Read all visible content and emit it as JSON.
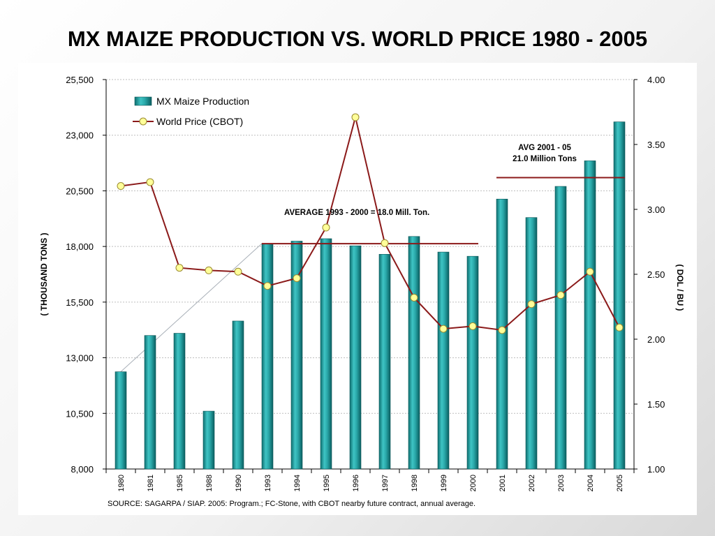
{
  "title": "MX MAIZE PRODUCTION VS. WORLD PRICE 1980 - 2005",
  "source": "SOURCE:  SAGARPA /   SIAP.   2005:  Program.; FC-Stone, with CBOT nearby future contract, annual average.",
  "chart_data": {
    "type": "bar",
    "categories": [
      "1980",
      "1981",
      "1985",
      "1988",
      "1990",
      "1993",
      "1994",
      "1995",
      "1996",
      "1997",
      "1998",
      "1999",
      "2000",
      "2001",
      "2002",
      "2003",
      "2004",
      "2005"
    ],
    "series": [
      {
        "name": "MX Maize Production",
        "type": "bar",
        "axis": "left",
        "color": "#1f9a9a",
        "values": [
          12370,
          14000,
          14100,
          10600,
          14650,
          18130,
          18240,
          18350,
          18030,
          17650,
          18450,
          17750,
          17560,
          20130,
          19300,
          20700,
          21850,
          23600
        ]
      },
      {
        "name": "World Price (CBOT)",
        "type": "line",
        "axis": "right",
        "color": "#8b1a1a",
        "marker_color": "#ffff99",
        "values": [
          3.18,
          3.21,
          2.55,
          2.53,
          2.52,
          2.41,
          2.47,
          2.86,
          3.71,
          2.74,
          2.32,
          2.08,
          2.1,
          2.07,
          2.27,
          2.34,
          2.52,
          2.09
        ]
      }
    ],
    "y_left": {
      "label": "( THOUSAND TONS )",
      "range": [
        8000,
        25500
      ],
      "ticks": [
        "25,500",
        "23,000",
        "20,500",
        "18,000",
        "15,500",
        "13,000",
        "10,500",
        "8,000"
      ],
      "tick_values": [
        25500,
        23000,
        20500,
        18000,
        15500,
        13000,
        10500,
        8000
      ]
    },
    "y_right": {
      "label": "( DOL / BU )",
      "range": [
        1.0,
        4.0
      ],
      "ticks": [
        "4.00",
        "3.50",
        "3.00",
        "2.50",
        "2.00",
        "1.50",
        "1.00"
      ],
      "tick_values": [
        4.0,
        3.5,
        3.0,
        2.5,
        2.0,
        1.5,
        1.0
      ]
    },
    "grid": true,
    "legend_position": "top-left",
    "annotations": {
      "avg_1993_2000": {
        "text": "AVERAGE  1993 - 2000 =  18.0 Mill. Ton.",
        "from": "1993",
        "to": "2000",
        "value": 18000
      },
      "avg_2001_2005": {
        "line1": "AVG  2001 - 05",
        "line2": "21.0  Million Tons",
        "from": "2001",
        "to": "2005",
        "value": 21000
      }
    },
    "trend_line": {
      "from": "1980",
      "from_value": 12370,
      "to": "1993",
      "to_value": 18130
    }
  }
}
